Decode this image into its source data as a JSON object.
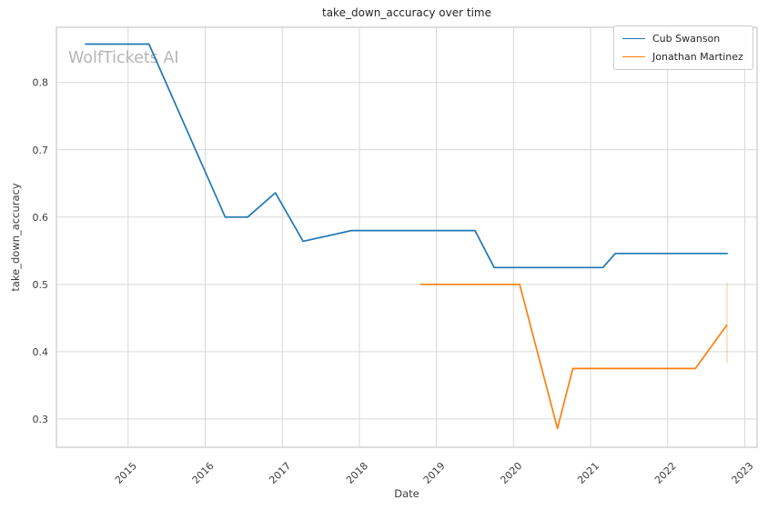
{
  "watermark": {
    "text": "WolfTickets AI",
    "color": "#b6b6b6"
  },
  "chart_data": {
    "type": "line",
    "title": "take_down_accuracy over time",
    "xlabel": "Date",
    "ylabel": "take_down_accuracy",
    "grid": true,
    "legend_position": "upper right",
    "xlim": [
      2014.07,
      2023.16
    ],
    "ylim": [
      0.258,
      0.882
    ],
    "x_ticks": [
      {
        "value": 2015,
        "label": "2015"
      },
      {
        "value": 2016,
        "label": "2016"
      },
      {
        "value": 2017,
        "label": "2017"
      },
      {
        "value": 2018,
        "label": "2018"
      },
      {
        "value": 2019,
        "label": "2019"
      },
      {
        "value": 2020,
        "label": "2020"
      },
      {
        "value": 2021,
        "label": "2021"
      },
      {
        "value": 2022,
        "label": "2022"
      },
      {
        "value": 2023,
        "label": "2023"
      }
    ],
    "y_ticks": [
      {
        "value": 0.3,
        "label": "0.3"
      },
      {
        "value": 0.4,
        "label": "0.4"
      },
      {
        "value": 0.5,
        "label": "0.5"
      },
      {
        "value": 0.6,
        "label": "0.6"
      },
      {
        "value": 0.7,
        "label": "0.7"
      },
      {
        "value": 0.8,
        "label": "0.8"
      }
    ],
    "series": [
      {
        "name": "Cub Swanson",
        "color": "#1f77b4",
        "points": [
          [
            2014.44,
            0.857
          ],
          [
            2015.27,
            0.857
          ],
          [
            2016.26,
            0.6
          ],
          [
            2016.55,
            0.6
          ],
          [
            2016.91,
            0.636
          ],
          [
            2017.27,
            0.564
          ],
          [
            2017.9,
            0.58
          ],
          [
            2019.5,
            0.58
          ],
          [
            2019.75,
            0.525
          ],
          [
            2021.16,
            0.525
          ],
          [
            2021.32,
            0.546
          ],
          [
            2022.78,
            0.546
          ]
        ]
      },
      {
        "name": "Jonathan Martinez",
        "color": "#ff7f0e",
        "points": [
          [
            2018.79,
            0.5
          ],
          [
            2020.08,
            0.5
          ],
          [
            2020.57,
            0.286
          ],
          [
            2020.77,
            0.375
          ],
          [
            2022.36,
            0.375
          ],
          [
            2022.77,
            0.44
          ]
        ]
      }
    ],
    "annotations": [
      {
        "type": "vertical-line",
        "x": 2022.77,
        "y_from": 0.383,
        "y_to": 0.502,
        "color": "#ff7f0e",
        "opacity": 0.3
      }
    ]
  }
}
